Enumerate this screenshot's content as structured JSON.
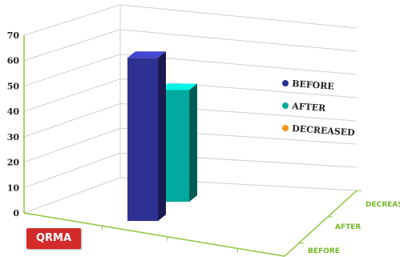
{
  "chart_data": {
    "type": "bar",
    "title": "",
    "xlabel": "",
    "ylabel": "",
    "ylim": [
      0,
      70
    ],
    "yticks": [
      0,
      10,
      20,
      30,
      40,
      50,
      60,
      70
    ],
    "series": [
      {
        "name": "BEFORE",
        "value": 61,
        "color": "#2e3192"
      },
      {
        "name": "AFTER",
        "value": 45,
        "color": "#00a99d"
      },
      {
        "name": "DECREASED",
        "value": 0,
        "color": "#f7941d"
      }
    ],
    "depth_labels": [
      "DECREASED",
      "AFTER",
      "BEFORE"
    ],
    "grid": true,
    "legend_position": "right"
  },
  "logo": "QRMA"
}
